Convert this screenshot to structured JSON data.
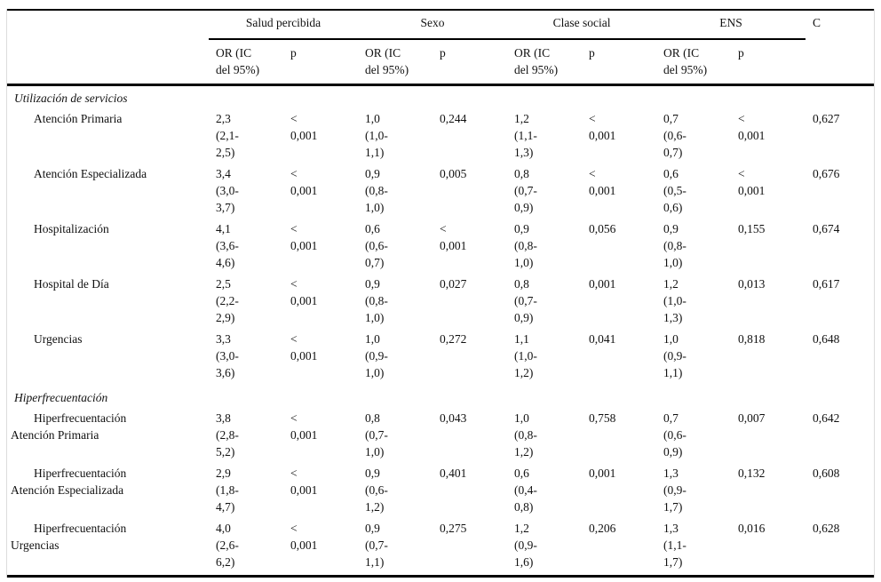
{
  "table": {
    "column_groups": [
      {
        "label": "Salud percibida"
      },
      {
        "label": "Sexo"
      },
      {
        "label": "Clase social"
      },
      {
        "label": "ENS"
      }
    ],
    "c_column_label": "C",
    "subheaders": {
      "or": "OR (IC\ndel 95%)",
      "p": "p"
    },
    "column_keys": [
      "salud-or",
      "salud-p",
      "sexo-or",
      "sexo-p",
      "clase-or",
      "clase-p",
      "ens-or",
      "ens-p",
      "c-statistic"
    ],
    "sections": [
      {
        "title": "Utilización de servicios",
        "rows": [
          {
            "label": "Atención Primaria",
            "cells": [
              "2,3\n(2,1-\n2,5)",
              "<\n0,001",
              "1,0\n(1,0-\n1,1)",
              "0,244",
              "1,2\n(1,1-\n1,3)",
              "<\n0,001",
              "0,7\n(0,6-\n0,7)",
              "<\n0,001",
              "0,627"
            ]
          },
          {
            "label": "Atención Especializada",
            "cells": [
              "3,4\n(3,0-\n3,7)",
              "<\n0,001",
              "0,9\n(0,8-\n1,0)",
              "0,005",
              "0,8\n(0,7-\n0,9)",
              "<\n0,001",
              "0,6\n(0,5-\n0,6)",
              "<\n0,001",
              "0,676"
            ]
          },
          {
            "label": "Hospitalización",
            "cells": [
              "4,1\n(3,6-\n4,6)",
              "<\n0,001",
              "0,6\n(0,6-\n0,7)",
              "<\n0,001",
              "0,9\n(0,8-\n1,0)",
              "0,056",
              "0,9\n(0,8-\n1,0)",
              "0,155",
              "0,674"
            ]
          },
          {
            "label": "Hospital de Día",
            "cells": [
              "2,5\n(2,2-\n2,9)",
              "<\n0,001",
              "0,9\n(0,8-\n1,0)",
              "0,027",
              "0,8\n(0,7-\n0,9)",
              "0,001",
              "1,2\n(1,0-\n1,3)",
              "0,013",
              "0,617"
            ]
          },
          {
            "label": "Urgencias",
            "cells": [
              "3,3\n(3,0-\n3,6)",
              "<\n0,001",
              "1,0\n(0,9-\n1,0)",
              "0,272",
              "1,1\n(1,0-\n1,2)",
              "0,041",
              "1,0\n(0,9-\n1,1)",
              "0,818",
              "0,648"
            ]
          }
        ]
      },
      {
        "title": "Hiperfrecuentación",
        "rows": [
          {
            "label": "Hiperfrecuentación\nAtención Primaria",
            "cells": [
              "3,8\n(2,8-\n5,2)",
              "<\n0,001",
              "0,8\n(0,7-\n1,0)",
              "0,043",
              "1,0\n(0,8-\n1,2)",
              "0,758",
              "0,7\n(0,6-\n0,9)",
              "0,007",
              "0,642"
            ]
          },
          {
            "label": "Hiperfrecuentación\nAtención Especializada",
            "cells": [
              "2,9\n(1,8-\n4,7)",
              "<\n0,001",
              "0,9\n(0,6-\n1,2)",
              "0,401",
              "0,6\n(0,4-\n0,8)",
              "0,001",
              "1,3\n(0,9-\n1,7)",
              "0,132",
              "0,608"
            ]
          },
          {
            "label": "Hiperfrecuentación\nUrgencias",
            "cells": [
              "4,0\n(2,6-\n6,2)",
              "<\n0,001",
              "0,9\n(0,7-\n1,1)",
              "0,275",
              "1,2\n(0,9-\n1,6)",
              "0,206",
              "1,3\n(1,1-\n1,7)",
              "0,016",
              "0,628"
            ]
          }
        ]
      }
    ]
  }
}
